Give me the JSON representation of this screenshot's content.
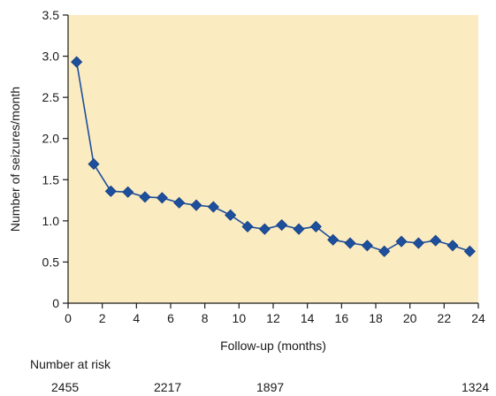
{
  "chart_data": {
    "type": "line",
    "title": "",
    "xlabel": "Follow-up (months)",
    "ylabel": "Number of seizures/month",
    "xlim": [
      0,
      24
    ],
    "ylim": [
      0,
      3.5
    ],
    "x_ticks": [
      "0",
      "2",
      "4",
      "6",
      "8",
      "10",
      "12",
      "14",
      "16",
      "18",
      "20",
      "22",
      "24"
    ],
    "y_ticks": [
      "0",
      "0.5",
      "1.0",
      "1.5",
      "2.0",
      "2.5",
      "3.0",
      "3.5"
    ],
    "grid": false,
    "plot_background": "#fbebc1",
    "series": [
      {
        "color": "#1d4f9c",
        "marker": "diamond",
        "x": [
          0.5,
          1.5,
          2.5,
          3.5,
          4.5,
          5.5,
          6.5,
          7.5,
          8.5,
          9.5,
          10.5,
          11.5,
          12.5,
          13.5,
          14.5,
          15.5,
          16.5,
          17.5,
          18.5,
          19.5,
          20.5,
          21.5,
          22.5,
          23.5
        ],
        "values": [
          2.93,
          1.69,
          1.36,
          1.35,
          1.29,
          1.28,
          1.22,
          1.19,
          1.17,
          1.07,
          0.93,
          0.9,
          0.95,
          0.9,
          0.93,
          0.77,
          0.73,
          0.7,
          0.63,
          0.75,
          0.73,
          0.76,
          0.7,
          0.63
        ]
      }
    ]
  },
  "risk_table": {
    "title": "Number at risk",
    "values": [
      {
        "month": 0,
        "count": "2455"
      },
      {
        "month": 6,
        "count": "2217"
      },
      {
        "month": 12,
        "count": "1897"
      },
      {
        "month": 24,
        "count": "1324"
      }
    ]
  }
}
